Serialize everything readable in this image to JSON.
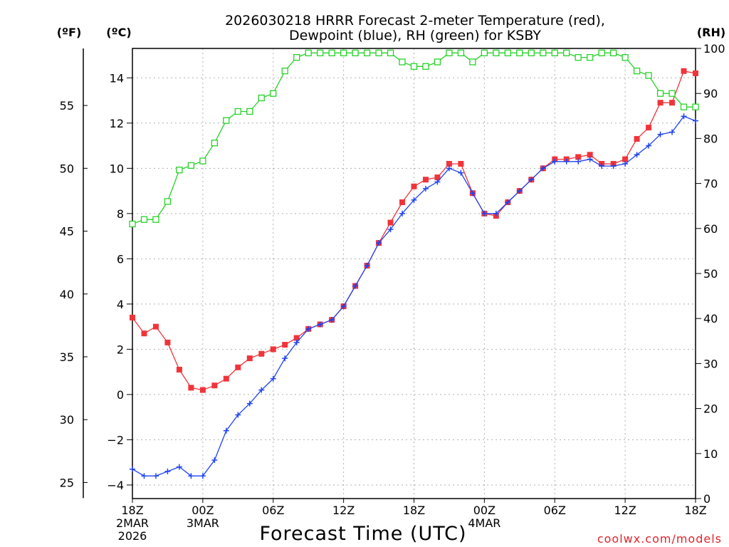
{
  "chart_data": {
    "type": "line",
    "title": "2026030218 HRRR Forecast 2-meter Temperature (red), Dewpoint (blue), RH (green) for KSBY",
    "title_lines": [
      "2026030218 HRRR Forecast 2-meter Temperature (red),",
      "Dewpoint (blue), RH (green) for KSBY"
    ],
    "xlabel": "Forecast Time (UTC)",
    "credit": "coolwx.com/models",
    "unit_labels": {
      "fahrenheit": "(ºF)",
      "celsius": "(ºC)",
      "rh": "(RH)"
    },
    "x_hours_range": [
      0,
      48
    ],
    "celsius_range": [
      -4.6,
      15.3
    ],
    "rh_range": [
      0,
      100
    ],
    "x_ticks": [
      {
        "hour": 0,
        "lines": [
          "18Z",
          "2MAR",
          "2026"
        ]
      },
      {
        "hour": 6,
        "lines": [
          "00Z",
          "3MAR"
        ]
      },
      {
        "hour": 12,
        "lines": [
          "06Z"
        ]
      },
      {
        "hour": 18,
        "lines": [
          "12Z"
        ]
      },
      {
        "hour": 24,
        "lines": [
          "18Z"
        ]
      },
      {
        "hour": 30,
        "lines": [
          "00Z",
          "4MAR"
        ]
      },
      {
        "hour": 36,
        "lines": [
          "06Z"
        ]
      },
      {
        "hour": 42,
        "lines": [
          "12Z"
        ]
      },
      {
        "hour": 48,
        "lines": [
          "18Z"
        ]
      }
    ],
    "celsius_ticks": [
      -4,
      -2,
      0,
      2,
      4,
      6,
      8,
      10,
      12,
      14
    ],
    "fahrenheit_ticks": [
      25,
      30,
      35,
      40,
      45,
      50,
      55
    ],
    "rh_ticks": [
      0,
      10,
      20,
      30,
      40,
      50,
      60,
      70,
      80,
      90,
      100
    ],
    "hours": [
      0,
      1,
      2,
      3,
      4,
      5,
      6,
      7,
      8,
      9,
      10,
      11,
      12,
      13,
      14,
      15,
      16,
      17,
      18,
      19,
      20,
      21,
      22,
      23,
      24,
      25,
      26,
      27,
      28,
      29,
      30,
      31,
      32,
      33,
      34,
      35,
      36,
      37,
      38,
      39,
      40,
      41,
      42,
      43,
      44,
      45,
      46,
      47,
      48
    ],
    "series": [
      {
        "name": "2-meter Temperature",
        "units": "degC",
        "color": "#f0343a",
        "marker": "filled-square",
        "values": [
          3.4,
          2.7,
          3.0,
          2.3,
          1.1,
          0.3,
          0.2,
          0.4,
          0.7,
          1.2,
          1.6,
          1.8,
          2.0,
          2.2,
          2.5,
          2.9,
          3.1,
          3.3,
          3.9,
          4.8,
          5.7,
          6.7,
          7.6,
          8.5,
          9.2,
          9.5,
          9.6,
          10.2,
          10.2,
          8.9,
          8.0,
          7.9,
          8.5,
          9.0,
          9.5,
          10.0,
          10.4,
          10.4,
          10.5,
          10.6,
          10.2,
          10.2,
          10.4,
          11.3,
          11.8,
          12.9,
          12.9,
          14.3,
          14.2
        ]
      },
      {
        "name": "Dewpoint",
        "units": "degC",
        "color": "#2044f0",
        "marker": "plus",
        "values": [
          -3.3,
          -3.6,
          -3.6,
          -3.4,
          -3.2,
          -3.6,
          -3.6,
          -2.9,
          -1.6,
          -0.9,
          -0.4,
          0.2,
          0.7,
          1.6,
          2.3,
          2.9,
          3.1,
          3.3,
          3.9,
          4.8,
          5.7,
          6.7,
          7.3,
          8.0,
          8.6,
          9.1,
          9.4,
          10.0,
          9.8,
          8.9,
          8.0,
          8.0,
          8.5,
          9.0,
          9.5,
          10.0,
          10.3,
          10.3,
          10.3,
          10.4,
          10.1,
          10.1,
          10.2,
          10.6,
          11.0,
          11.5,
          11.6,
          12.3,
          12.1
        ]
      },
      {
        "name": "RH",
        "units": "percent",
        "color": "#28d228",
        "marker": "open-square",
        "values": [
          61,
          62,
          62,
          66,
          73,
          74,
          75,
          79,
          84,
          86,
          86,
          89,
          90,
          95,
          98,
          99,
          99,
          99,
          99,
          99,
          99,
          99,
          99,
          97,
          96,
          96,
          97,
          99,
          99,
          97,
          99,
          99,
          99,
          99,
          99,
          99,
          99,
          99,
          98,
          98,
          99,
          99,
          98,
          95,
          94,
          90,
          90,
          87,
          87
        ]
      }
    ]
  }
}
